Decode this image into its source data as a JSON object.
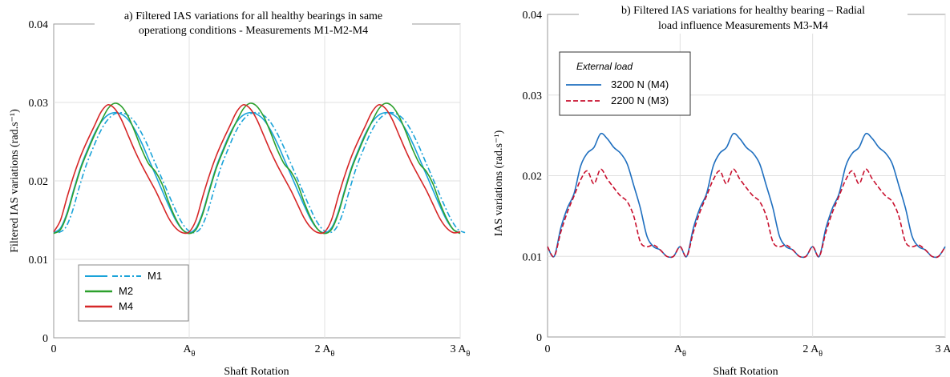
{
  "chart_data": [
    {
      "type": "line",
      "title_lines": [
        "a) Filtered IAS variations for all healthy bearings in same",
        "operationg conditions  - Measurements M1-M2-M4"
      ],
      "xlabel": "Shaft Rotation",
      "ylabel": "Filtered IAS variations (rad.s⁻¹)",
      "ylim": [
        0,
        0.04
      ],
      "yticks": [
        0,
        0.01,
        0.02,
        0.03,
        0.04
      ],
      "ytick_labels": [
        "0",
        "0.01",
        "0.02",
        "0.03",
        "0.04"
      ],
      "xlim": [
        0,
        3
      ],
      "xticks": [
        0,
        1,
        2,
        3
      ],
      "xtick_labels": [
        "0",
        "Aθ",
        "2 Aθ",
        "3 Aθ"
      ],
      "grid": true,
      "legend": {
        "position": "bottom-left",
        "title": "",
        "entries": [
          "M1",
          "M2",
          "M4"
        ]
      },
      "series": [
        {
          "name": "M1",
          "color": "#1aa3d9",
          "style": "solid+dashdot",
          "x": [
            0,
            0.05,
            0.1,
            0.15,
            0.2,
            0.25,
            0.3,
            0.35,
            0.4,
            0.45,
            0.5,
            0.55,
            0.6,
            0.65,
            0.7,
            0.75,
            0.8,
            0.85,
            0.9,
            0.95,
            1.0
          ],
          "y": [
            0.0134,
            0.014,
            0.016,
            0.019,
            0.0218,
            0.024,
            0.026,
            0.0275,
            0.0284,
            0.0287,
            0.0285,
            0.0278,
            0.0265,
            0.0248,
            0.0228,
            0.0208,
            0.0188,
            0.0168,
            0.015,
            0.0138,
            0.0134
          ]
        },
        {
          "name": "M2",
          "color": "#2ca02c",
          "style": "solid",
          "x": [
            0,
            0.05,
            0.1,
            0.15,
            0.2,
            0.25,
            0.3,
            0.35,
            0.4,
            0.45,
            0.5,
            0.55,
            0.6,
            0.65,
            0.7,
            0.75,
            0.8,
            0.85,
            0.9,
            0.95,
            1.0
          ],
          "y": [
            0.0133,
            0.0138,
            0.0158,
            0.0188,
            0.0216,
            0.0238,
            0.0258,
            0.0276,
            0.0292,
            0.0299,
            0.0295,
            0.0282,
            0.0262,
            0.024,
            0.0222,
            0.0212,
            0.0196,
            0.0172,
            0.0152,
            0.0138,
            0.0133
          ]
        },
        {
          "name": "M4",
          "color": "#d62728",
          "style": "solid",
          "x": [
            0,
            0.05,
            0.1,
            0.15,
            0.2,
            0.25,
            0.3,
            0.35,
            0.4,
            0.45,
            0.5,
            0.55,
            0.6,
            0.65,
            0.7,
            0.75,
            0.8,
            0.85,
            0.9,
            0.95,
            1.0
          ],
          "y": [
            0.0135,
            0.015,
            0.018,
            0.0208,
            0.0232,
            0.0252,
            0.027,
            0.0288,
            0.0297,
            0.0292,
            0.0278,
            0.0258,
            0.0238,
            0.022,
            0.0204,
            0.0188,
            0.017,
            0.0152,
            0.014,
            0.0134,
            0.0135
          ]
        }
      ]
    },
    {
      "type": "line",
      "title_lines": [
        "b) Filtered IAS variations for healthy bearing – Radial",
        "load influence  Measurements M3-M4"
      ],
      "xlabel": "Shaft Rotation",
      "ylabel": "IAS variations (rad.s⁻¹)",
      "ylim": [
        0,
        0.04
      ],
      "yticks": [
        0,
        0.01,
        0.02,
        0.03,
        0.04
      ],
      "ytick_labels": [
        "0",
        "0.01",
        "0.02",
        "0.03",
        "0.04"
      ],
      "xlim": [
        0,
        3
      ],
      "xticks": [
        0,
        1,
        2,
        3
      ],
      "xtick_labels": [
        "0",
        "Aθ",
        "2 Aθ",
        "3 Aθ"
      ],
      "grid": true,
      "legend": {
        "position": "top-left",
        "title": "External load",
        "entries": [
          "3200 N  (M4)",
          "2200 N  (M3)"
        ]
      },
      "series": [
        {
          "name": "3200 N  (M4)",
          "color": "#1f6fbf",
          "style": "solid",
          "x": [
            0,
            0.05,
            0.1,
            0.15,
            0.2,
            0.25,
            0.3,
            0.35,
            0.4,
            0.45,
            0.5,
            0.55,
            0.6,
            0.65,
            0.7,
            0.75,
            0.8,
            0.85,
            0.9,
            0.95,
            1.0
          ],
          "y": [
            0.0112,
            0.01,
            0.0135,
            0.016,
            0.0178,
            0.0212,
            0.0228,
            0.0235,
            0.0252,
            0.0246,
            0.0235,
            0.0228,
            0.0215,
            0.0188,
            0.016,
            0.0125,
            0.0112,
            0.0108,
            0.01,
            0.01,
            0.0112
          ]
        },
        {
          "name": "2200 N  (M3)",
          "color": "#c8102e",
          "style": "dashed",
          "x": [
            0,
            0.05,
            0.1,
            0.15,
            0.2,
            0.25,
            0.3,
            0.35,
            0.4,
            0.45,
            0.5,
            0.55,
            0.6,
            0.65,
            0.7,
            0.75,
            0.8,
            0.85,
            0.9,
            0.95,
            1.0
          ],
          "y": [
            0.0112,
            0.01,
            0.013,
            0.0155,
            0.0175,
            0.0195,
            0.0206,
            0.019,
            0.0208,
            0.0196,
            0.0185,
            0.0175,
            0.0168,
            0.015,
            0.0118,
            0.0112,
            0.0114,
            0.0108,
            0.01,
            0.01,
            0.0112
          ]
        }
      ]
    }
  ]
}
